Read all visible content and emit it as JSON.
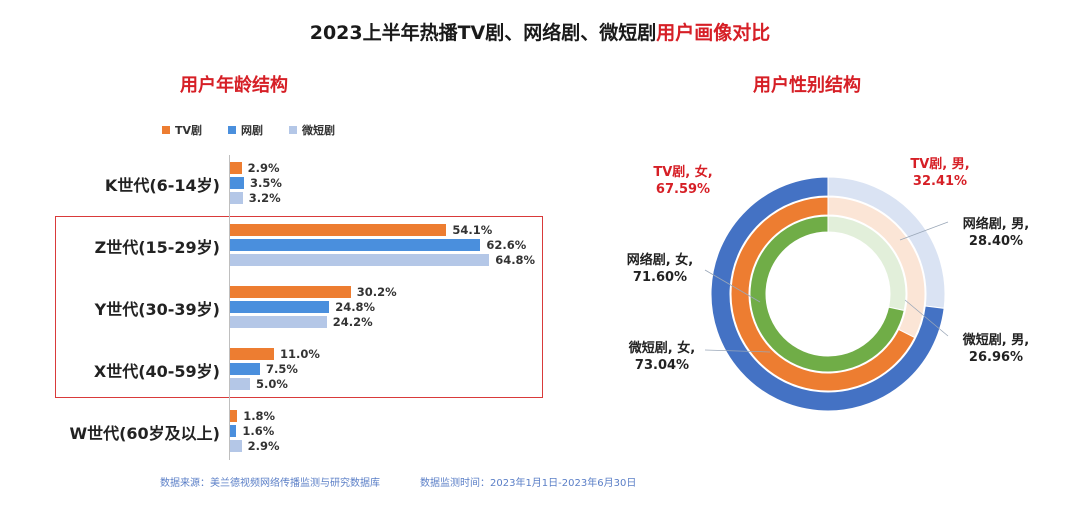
{
  "title": {
    "main": "2023上半年热播TV剧、网络剧、微短剧",
    "highlight": "用户画像对比"
  },
  "age_section": {
    "title": "用户年龄结构"
  },
  "gender_section": {
    "title": "用户性别结构"
  },
  "legend": [
    {
      "label": "TV剧",
      "color": "#ed7d31"
    },
    {
      "label": "网剧",
      "color": "#4a8fdd"
    },
    {
      "label": "微短剧",
      "color": "#b4c7e7"
    }
  ],
  "footer": {
    "source": "数据来源：美兰德视频网络传播监测与研究数据库",
    "period": "数据监测时间：2023年1月1日-2023年6月30日"
  },
  "chart_data": [
    {
      "type": "bar",
      "orientation": "horizontal",
      "title": "用户年龄结构",
      "categories": [
        "K世代(6-14岁)",
        "Z世代(15-29岁)",
        "Y世代(30-39岁)",
        "X世代(40-59岁)",
        "W世代(60岁及以上)"
      ],
      "series": [
        {
          "name": "TV剧",
          "color": "#ed7d31",
          "values": [
            2.9,
            54.1,
            30.2,
            11.0,
            1.8
          ],
          "labels": [
            "2.9%",
            "54.1%",
            "30.2%",
            "11.0%",
            "1.8%"
          ]
        },
        {
          "name": "网剧",
          "color": "#4a8fdd",
          "values": [
            3.5,
            62.6,
            24.8,
            7.5,
            1.6
          ],
          "labels": [
            "3.5%",
            "62.6%",
            "24.8%",
            "7.5%",
            "1.6%"
          ]
        },
        {
          "name": "微短剧",
          "color": "#b4c7e7",
          "values": [
            3.2,
            64.8,
            24.2,
            5.0,
            2.9
          ],
          "labels": [
            "3.2%",
            "64.8%",
            "24.2%",
            "5.0%",
            "2.9%"
          ]
        }
      ],
      "xlim": [
        0,
        70
      ]
    },
    {
      "type": "pie",
      "subtype": "nested-donut",
      "title": "用户性别结构",
      "rings": [
        {
          "name": "微短剧",
          "female": 73.04,
          "male": 26.96,
          "female_color": "#4472c4",
          "male_color": "#dae3f3",
          "female_label": [
            "微短剧, 女,",
            "73.04%"
          ],
          "male_label": [
            "微短剧, 男,",
            "26.96%"
          ]
        },
        {
          "name": "TV剧",
          "female": 67.59,
          "male": 32.41,
          "female_color": "#ed7d31",
          "male_color": "#fbe5d6",
          "female_label": [
            "TV剧, 女,",
            "67.59%"
          ],
          "male_label": [
            "TV剧, 男,",
            "32.41%"
          ]
        },
        {
          "name": "网络剧",
          "female": 71.6,
          "male": 28.4,
          "female_color": "#70ad47",
          "male_color": "#e2efda",
          "female_label": [
            "网络剧, 女,",
            "71.60%"
          ],
          "male_label": [
            "网络剧, 男,",
            "28.40%"
          ]
        }
      ]
    }
  ]
}
